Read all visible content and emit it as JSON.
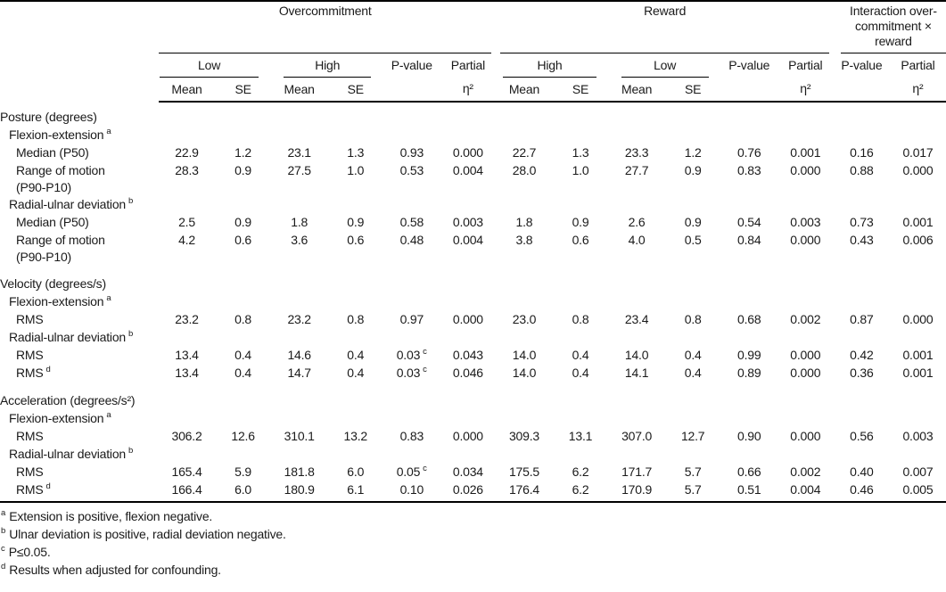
{
  "colors": {
    "background": "#ffffff",
    "text": "#1a1a1a",
    "rule": "#000000"
  },
  "header": {
    "groups": [
      {
        "label": "Overcommitment",
        "subgroups": [
          {
            "label": "Low"
          },
          {
            "label": "High"
          }
        ]
      },
      {
        "label": "Reward",
        "subgroups": [
          {
            "label": "High"
          },
          {
            "label": "Low"
          }
        ]
      },
      {
        "label": "Interaction over-commitment × reward"
      }
    ],
    "mean": "Mean",
    "se": "SE",
    "pvalue": "P-value",
    "partial_line1": "Partial",
    "partial_line2": "η²"
  },
  "table": {
    "rows": [
      {
        "type": "section",
        "label": "Posture (degrees)"
      },
      {
        "type": "group",
        "label": "Flexion-extension",
        "marker": "a"
      },
      {
        "type": "data",
        "label": "Median (P50)",
        "values": [
          "22.9",
          "1.2",
          "23.1",
          "1.3",
          "0.93",
          "0.000",
          "22.7",
          "1.3",
          "23.3",
          "1.2",
          "0.76",
          "0.001",
          "0.16",
          "0.017"
        ]
      },
      {
        "type": "data",
        "label": "Range of motion",
        "label2": "(P90-P10)",
        "values": [
          "28.3",
          "0.9",
          "27.5",
          "1.0",
          "0.53",
          "0.004",
          "28.0",
          "1.0",
          "27.7",
          "0.9",
          "0.83",
          "0.000",
          "0.88",
          "0.000"
        ]
      },
      {
        "type": "group",
        "label": "Radial-ulnar deviation",
        "marker": "b"
      },
      {
        "type": "data",
        "label": "Median (P50)",
        "values": [
          "2.5",
          "0.9",
          "1.8",
          "0.9",
          "0.58",
          "0.003",
          "1.8",
          "0.9",
          "2.6",
          "0.9",
          "0.54",
          "0.003",
          "0.73",
          "0.001"
        ]
      },
      {
        "type": "data",
        "label": "Range of motion",
        "label2": "(P90-P10)",
        "values": [
          "4.2",
          "0.6",
          "3.6",
          "0.6",
          "0.48",
          "0.004",
          "3.8",
          "0.6",
          "4.0",
          "0.5",
          "0.84",
          "0.000",
          "0.43",
          "0.006"
        ]
      },
      {
        "type": "section",
        "label": "Velocity (degrees/s)"
      },
      {
        "type": "group",
        "label": "Flexion-extension",
        "marker": "a"
      },
      {
        "type": "data",
        "label": "RMS",
        "values": [
          "23.2",
          "0.8",
          "23.2",
          "0.8",
          "0.97",
          "0.000",
          "23.0",
          "0.8",
          "23.4",
          "0.8",
          "0.68",
          "0.002",
          "0.87",
          "0.000"
        ]
      },
      {
        "type": "group",
        "label": "Radial-ulnar deviation",
        "marker": "b"
      },
      {
        "type": "data",
        "label": "RMS",
        "values": [
          "13.4",
          "0.4",
          "14.6",
          "0.4",
          {
            "v": "0.03",
            "sup": "c"
          },
          "0.043",
          "14.0",
          "0.4",
          "14.0",
          "0.4",
          "0.99",
          "0.000",
          "0.42",
          "0.001"
        ]
      },
      {
        "type": "data",
        "label": "RMS",
        "marker": "d",
        "values": [
          "13.4",
          "0.4",
          "14.7",
          "0.4",
          {
            "v": "0.03",
            "sup": "c"
          },
          "0.046",
          "14.0",
          "0.4",
          "14.1",
          "0.4",
          "0.89",
          "0.000",
          "0.36",
          "0.001"
        ]
      },
      {
        "type": "section",
        "label": "Acceleration (degrees/s²)"
      },
      {
        "type": "group",
        "label": "Flexion-extension",
        "marker": "a"
      },
      {
        "type": "data",
        "label": "RMS",
        "values": [
          "306.2",
          "12.6",
          "310.1",
          "13.2",
          "0.83",
          "0.000",
          "309.3",
          "13.1",
          "307.0",
          "12.7",
          "0.90",
          "0.000",
          "0.56",
          "0.003"
        ]
      },
      {
        "type": "group",
        "label": "Radial-ulnar deviation",
        "marker": "b"
      },
      {
        "type": "data",
        "label": "RMS",
        "values": [
          "165.4",
          "5.9",
          "181.8",
          "6.0",
          {
            "v": "0.05",
            "sup": "c"
          },
          "0.034",
          "175.5",
          "6.2",
          "171.7",
          "5.7",
          "0.66",
          "0.002",
          "0.40",
          "0.007"
        ]
      },
      {
        "type": "data",
        "label": "RMS",
        "marker": "d",
        "values": [
          "166.4",
          "6.0",
          "180.9",
          "6.1",
          "0.10",
          "0.026",
          "176.4",
          "6.2",
          "170.9",
          "5.7",
          "0.51",
          "0.004",
          "0.46",
          "0.005"
        ]
      }
    ]
  },
  "footnotes": [
    {
      "marker": "a",
      "text": "Extension is positive, flexion negative."
    },
    {
      "marker": "b",
      "text": "Ulnar deviation is positive, radial deviation negative."
    },
    {
      "marker": "c",
      "text": "P≤0.05."
    },
    {
      "marker": "d",
      "text": "Results when adjusted for confounding."
    }
  ]
}
